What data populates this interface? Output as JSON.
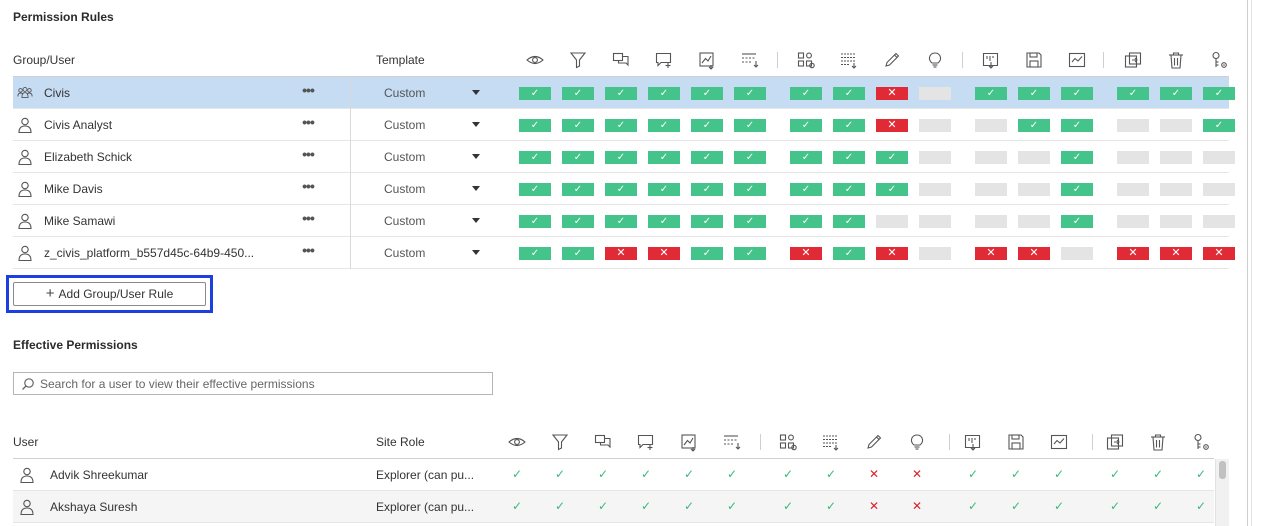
{
  "permission_rules": {
    "title": "Permission Rules",
    "col_group_user": "Group/User",
    "col_template": "Template",
    "rows": [
      {
        "name": "Civis",
        "type": "group",
        "template": "Custom",
        "selected": true,
        "caps": [
          "allow",
          "allow",
          "allow",
          "allow",
          "allow",
          "allow",
          "allow",
          "allow",
          "deny",
          "unset",
          "allow",
          "allow",
          "allow",
          "allow",
          "allow",
          "allow"
        ]
      },
      {
        "name": "Civis Analyst",
        "type": "user",
        "template": "Custom",
        "selected": false,
        "caps": [
          "allow",
          "allow",
          "allow",
          "allow",
          "allow",
          "allow",
          "allow",
          "allow",
          "deny",
          "unset",
          "unset",
          "allow",
          "allow",
          "unset",
          "unset",
          "allow"
        ]
      },
      {
        "name": "Elizabeth Schick",
        "type": "user",
        "template": "Custom",
        "selected": false,
        "caps": [
          "allow",
          "allow",
          "allow",
          "allow",
          "allow",
          "allow",
          "allow",
          "allow",
          "allow",
          "unset",
          "unset",
          "unset",
          "allow",
          "unset",
          "unset",
          "unset"
        ]
      },
      {
        "name": "Mike Davis",
        "type": "user",
        "template": "Custom",
        "selected": false,
        "caps": [
          "allow",
          "allow",
          "allow",
          "allow",
          "allow",
          "allow",
          "allow",
          "allow",
          "allow",
          "unset",
          "unset",
          "unset",
          "allow",
          "unset",
          "unset",
          "unset"
        ]
      },
      {
        "name": "Mike Samawi",
        "type": "user",
        "template": "Custom",
        "selected": false,
        "caps": [
          "allow",
          "allow",
          "allow",
          "allow",
          "allow",
          "allow",
          "allow",
          "allow",
          "unset",
          "unset",
          "unset",
          "unset",
          "allow",
          "unset",
          "unset",
          "unset"
        ]
      },
      {
        "name": "z_civis_platform_b557d45c-64b9-450...",
        "type": "user",
        "template": "Custom",
        "selected": false,
        "caps": [
          "allow",
          "allow",
          "deny",
          "deny",
          "allow",
          "allow",
          "deny",
          "allow",
          "deny",
          "unset",
          "deny",
          "deny",
          "unset",
          "deny",
          "deny",
          "deny"
        ]
      }
    ],
    "add_button_label": "Add Group/User Rule"
  },
  "effective_permissions": {
    "title": "Effective Permissions",
    "search_placeholder": "Search for a user to view their effective permissions",
    "col_user": "User",
    "col_site_role": "Site Role",
    "rows": [
      {
        "name": "Advik Shreekumar",
        "site_role": "Explorer (can pu...",
        "caps": [
          "allow",
          "allow",
          "allow",
          "allow",
          "allow",
          "allow",
          "allow",
          "allow",
          "deny",
          "deny",
          "allow",
          "allow",
          "allow",
          "allow",
          "allow",
          "allow"
        ]
      },
      {
        "name": "Akshaya Suresh",
        "site_role": "Explorer (can pu...",
        "caps": [
          "allow",
          "allow",
          "allow",
          "allow",
          "allow",
          "allow",
          "allow",
          "allow",
          "deny",
          "deny",
          "allow",
          "allow",
          "allow",
          "allow",
          "allow",
          "allow"
        ]
      }
    ]
  },
  "capability_icons": [
    "view-icon",
    "filter-icon",
    "comments-icon",
    "add-comment-icon",
    "image-pdf-icon",
    "summary-data-icon",
    "full-data-icon",
    "web-edit-icon",
    "web-edit-pencil-icon",
    "explain-data-icon",
    "download-workbook-icon",
    "save-icon",
    "overwrite-icon",
    "move-icon",
    "delete-icon",
    "set-permissions-icon"
  ],
  "colors": {
    "allow": "#44c48a",
    "deny": "#e02a35",
    "unset": "#e4e4e4",
    "selected_row": "#c5dcf3",
    "highlight_border": "#1d3fe0"
  }
}
